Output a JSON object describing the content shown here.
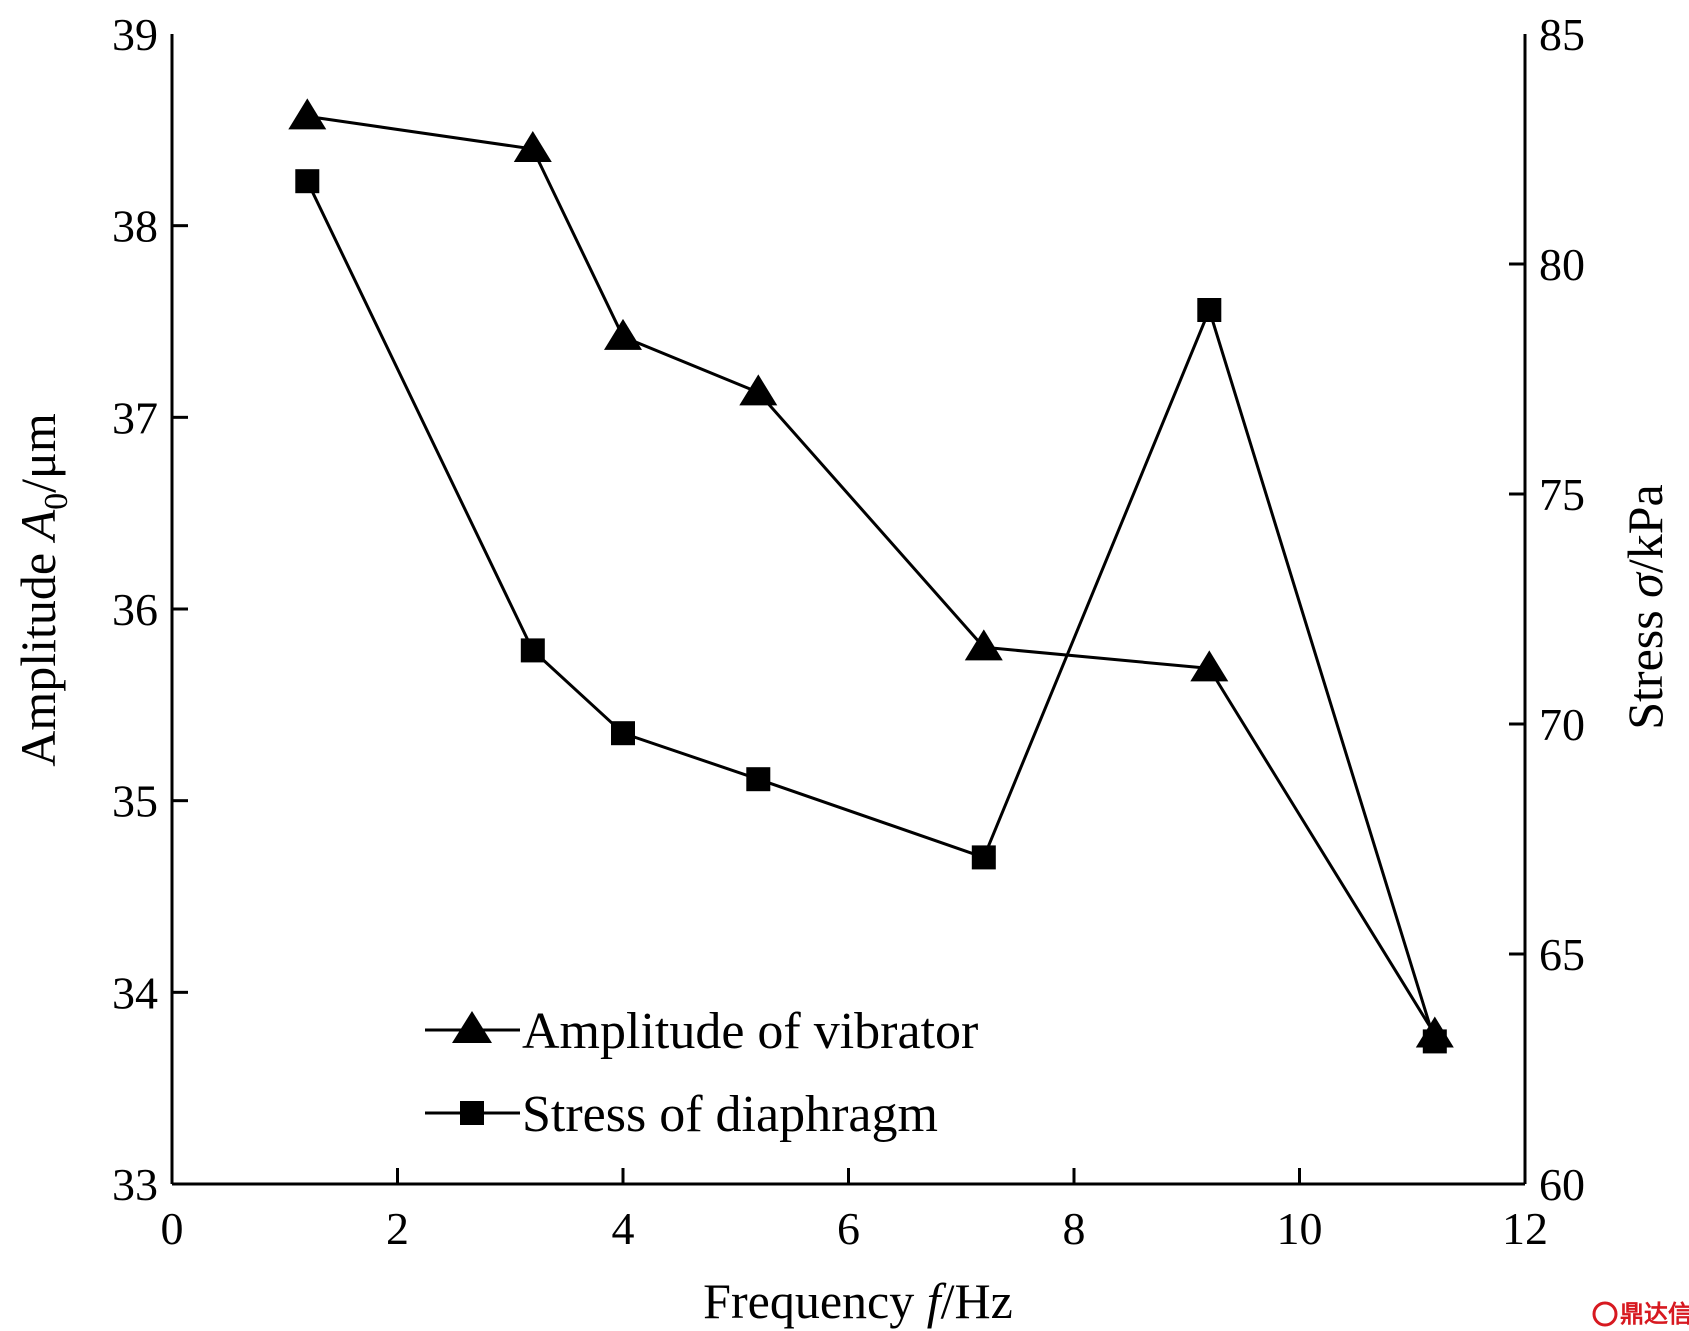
{
  "chart_data": {
    "type": "line",
    "x": [
      1.2,
      3.2,
      4.0,
      5.2,
      7.2,
      9.2,
      11.2
    ],
    "xlim": [
      0,
      12
    ],
    "x_ticks": [
      "0",
      "2",
      "4",
      "6",
      "8",
      "10",
      "12"
    ],
    "xlabel": {
      "pre": "Frequency ",
      "var": "f",
      "post": "/Hz"
    },
    "ylim_left": [
      33,
      39
    ],
    "y_left_ticks": [
      "33",
      "34",
      "35",
      "36",
      "37",
      "38",
      "39"
    ],
    "ylabel_left": {
      "pre": "Amplitude ",
      "var": "A",
      "sub": "0",
      "post": "/μm"
    },
    "ylim_right": [
      60,
      85
    ],
    "y_right_ticks": [
      "60",
      "65",
      "70",
      "75",
      "80",
      "85"
    ],
    "ylabel_right": {
      "pre": "Stress ",
      "var": "σ",
      "post": "/kPa"
    },
    "series": [
      {
        "name": "Amplitude of vibrator",
        "axis": "left",
        "marker": "triangle",
        "values": [
          38.57,
          38.4,
          37.42,
          37.13,
          35.8,
          35.69,
          33.78
        ]
      },
      {
        "name": "Stress of diaphragm",
        "axis": "right",
        "marker": "square",
        "values": [
          81.8,
          71.6,
          69.8,
          68.8,
          67.1,
          79.0,
          63.1
        ]
      }
    ],
    "legend_position": "bottom-center",
    "grid": false,
    "colors": {
      "line": "#000000",
      "marker": "#000000"
    }
  },
  "watermark": {
    "text": "鼎达信",
    "color": "#d71920"
  }
}
